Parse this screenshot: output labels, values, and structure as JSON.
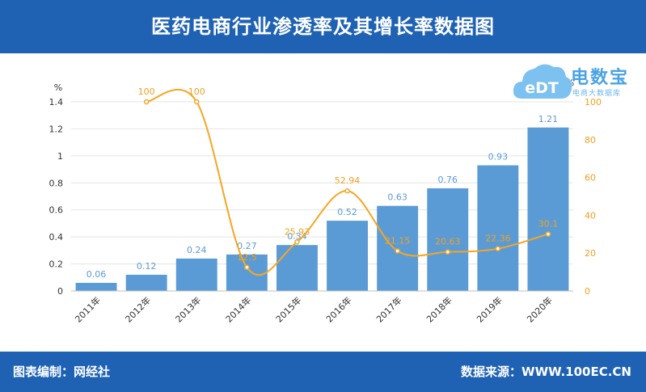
{
  "header": {
    "title": "医药电商行业渗透率及其增长率数据图"
  },
  "footer": {
    "left": "图表编制：网经社",
    "right": "数据来源：WWW.100EC.CN"
  },
  "logo": {
    "text": "eDT",
    "brand": "电数宝",
    "sub": "电商大数据库"
  },
  "colors": {
    "header_bg": "#1f62b4",
    "bar": "#5b9bd5",
    "line": "#f5a623",
    "bar_label": "#5b9bd5",
    "line_label": "#f0a020"
  },
  "chart_data": {
    "type": "bar+line",
    "categories": [
      "2011年",
      "2012年",
      "2013年",
      "2014年",
      "2015年",
      "2016年",
      "2017年",
      "2018年",
      "2019年",
      "2020年"
    ],
    "left_axis": {
      "unit": "%",
      "ylim": [
        0,
        1.4
      ],
      "ticks": [
        "0",
        "0.2",
        "0.4",
        "0.6",
        "0.8",
        "1",
        "1.2",
        "1.4"
      ]
    },
    "right_axis": {
      "unit": "%",
      "ylim": [
        0,
        100
      ],
      "ticks": [
        "0",
        "20",
        "40",
        "60",
        "80",
        "100"
      ]
    },
    "series": [
      {
        "type": "bar",
        "axis": "left",
        "values": [
          0.06,
          0.12,
          0.24,
          0.27,
          0.34,
          0.52,
          0.63,
          0.76,
          0.93,
          1.21
        ],
        "labels": [
          "0.06",
          "0.12",
          "0.24",
          "0.27",
          "0.34",
          "0.52",
          "0.63",
          "0.76",
          "0.93",
          "1.21"
        ]
      },
      {
        "type": "line",
        "axis": "right",
        "values": [
          null,
          100,
          100,
          12.5,
          25.93,
          52.94,
          21.15,
          20.63,
          22.36,
          30.1
        ],
        "labels": [
          "",
          "100",
          "100",
          "12.5",
          "25.93",
          "52.94",
          "21.15",
          "20.63",
          "22.36",
          "30.1"
        ]
      }
    ],
    "grid": true,
    "legend": "none"
  }
}
